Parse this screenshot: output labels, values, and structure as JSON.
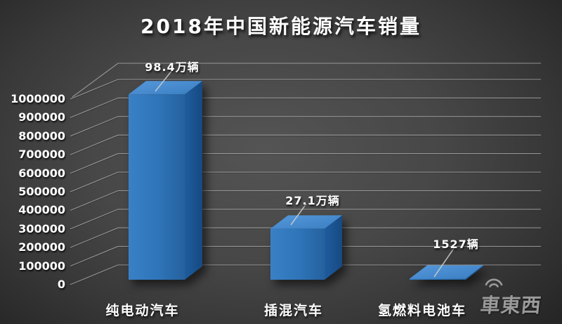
{
  "title": "2018年中国新能源汽车销量",
  "chart_data": {
    "type": "bar",
    "style": "3d-column",
    "title": "2018年中国新能源汽车销量",
    "categories": [
      "纯电动汽车",
      "插混汽车",
      "氢燃料电池车"
    ],
    "values": [
      984000,
      271000,
      1527
    ],
    "data_labels": [
      "98.4万辆",
      "27.1万辆",
      "1527辆"
    ],
    "yticks": [
      "0",
      "100000",
      "200000",
      "300000",
      "400000",
      "500000",
      "600000",
      "700000",
      "800000",
      "900000",
      "1000000"
    ],
    "ylim": [
      0,
      1000000
    ],
    "ytick_step": 100000,
    "xlabel": "",
    "ylabel": "",
    "grid": true,
    "legend": false
  },
  "watermark": {
    "text": "車東西",
    "icon": "signal-arcs-icon"
  },
  "colors": {
    "bar_front": "#2e74b8",
    "bar_front_dark": "#25619e",
    "bar_top": "#4f93d8",
    "bar_top_dark": "#3a7ec2",
    "bar_side": "#1f5c9e",
    "bar_side_dark": "#164a82",
    "gridline": "#b9b9b9",
    "gridline_shadow": "#1e1e1e",
    "leader_line": "#cfcfcf",
    "text": "#ffffff",
    "watermark_gray": "#9a9a9a"
  }
}
